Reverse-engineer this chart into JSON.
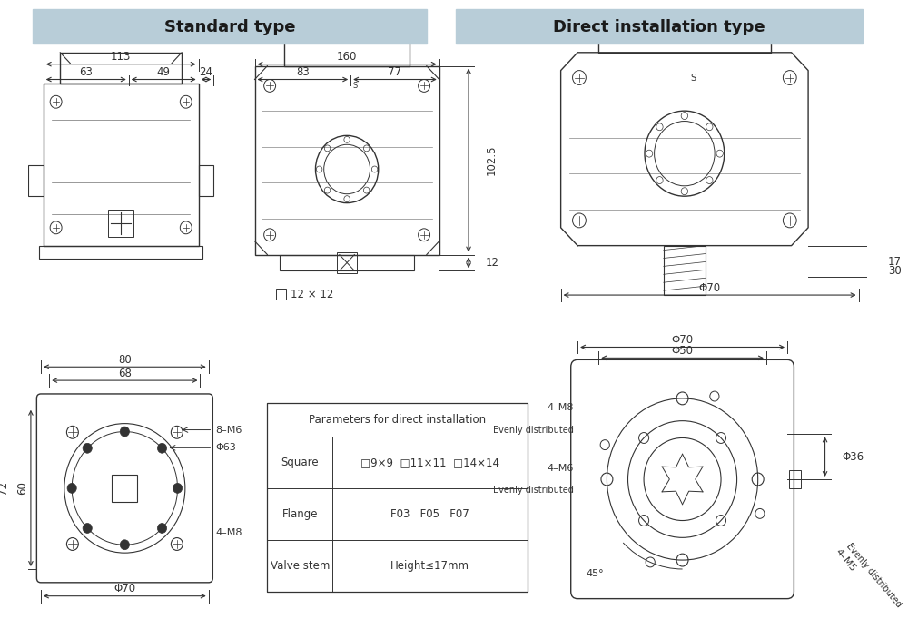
{
  "bg_color": "#ffffff",
  "header_bg_left": "#b8cdd8",
  "header_bg_right": "#b8cdd8",
  "header_text_left": "Standard type",
  "header_text_right": "Direct installation type",
  "header_font_size": 13,
  "dim_font_size": 8.5,
  "label_font_size": 8,
  "table_header": "Parameters for direct installation",
  "table_rows": [
    [
      "Square",
      "□9×9  □11×11  □14×14"
    ],
    [
      "Flange",
      "F03   F05   F07"
    ],
    [
      "Valve stem",
      "Height≤17mm"
    ]
  ],
  "line_color": "#333333",
  "dim_color": "#333333"
}
